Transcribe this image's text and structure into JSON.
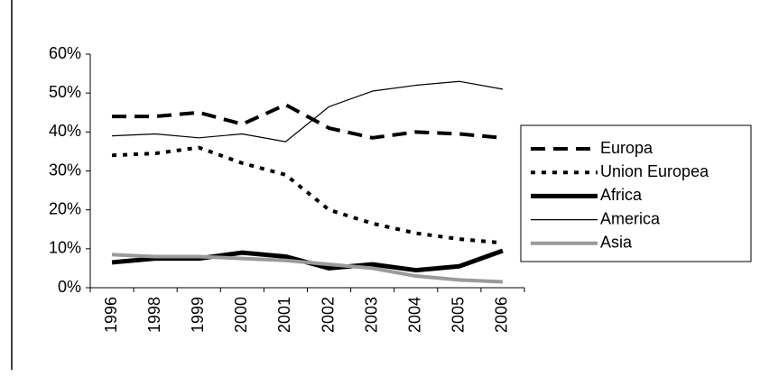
{
  "chart_data": {
    "type": "line",
    "categories": [
      "1996",
      "1998",
      "1999",
      "2000",
      "2001",
      "2002",
      "2003",
      "2004",
      "2005",
      "2006"
    ],
    "series": [
      {
        "name": "Europa",
        "color": "#000000",
        "values": [
          44,
          44,
          45,
          42,
          47,
          41,
          38.5,
          40,
          39.5,
          38.5
        ]
      },
      {
        "name": "Union Europea",
        "color": "#000000",
        "values": [
          34,
          34.5,
          36,
          32,
          29,
          20,
          16.5,
          14,
          12.5,
          11.5
        ]
      },
      {
        "name": "Africa",
        "color": "#000000",
        "values": [
          6.5,
          7.5,
          7.5,
          9,
          8,
          5,
          6,
          4.5,
          5.5,
          9.5
        ]
      },
      {
        "name": "America",
        "color": "#000000",
        "values": [
          39,
          39.5,
          38.5,
          39.5,
          37.5,
          46.5,
          50.5,
          52,
          53,
          51
        ]
      },
      {
        "name": "Asia",
        "color": "#9a9a9a",
        "values": [
          8.5,
          8,
          8,
          7.5,
          7,
          6,
          5,
          3,
          2,
          1.5
        ]
      }
    ],
    "ylim": [
      0,
      60
    ],
    "yticks": [
      {
        "value": 0,
        "label": "0%"
      },
      {
        "value": 10,
        "label": "10%"
      },
      {
        "value": 20,
        "label": "20%"
      },
      {
        "value": 30,
        "label": "30%"
      },
      {
        "value": 40,
        "label": "40%"
      },
      {
        "value": 50,
        "label": "50%"
      },
      {
        "value": 60,
        "label": "60%"
      }
    ],
    "legend": "right"
  }
}
